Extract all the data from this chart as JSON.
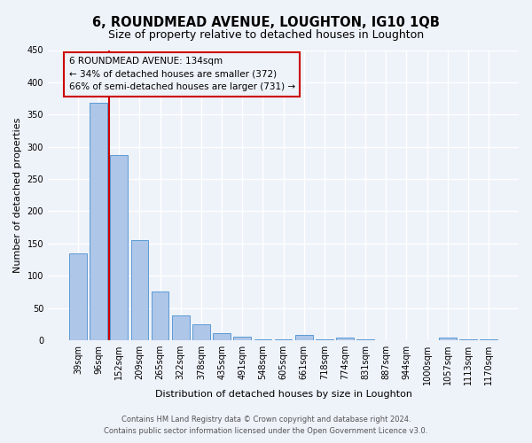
{
  "title": "6, ROUNDMEAD AVENUE, LOUGHTON, IG10 1QB",
  "subtitle": "Size of property relative to detached houses in Loughton",
  "xlabel": "Distribution of detached houses by size in Loughton",
  "ylabel": "Number of detached properties",
  "bar_labels": [
    "39sqm",
    "96sqm",
    "152sqm",
    "209sqm",
    "265sqm",
    "322sqm",
    "378sqm",
    "435sqm",
    "491sqm",
    "548sqm",
    "605sqm",
    "661sqm",
    "718sqm",
    "774sqm",
    "831sqm",
    "887sqm",
    "944sqm",
    "1000sqm",
    "1057sqm",
    "1113sqm",
    "1170sqm"
  ],
  "bar_values": [
    135,
    368,
    287,
    155,
    75,
    38,
    25,
    11,
    6,
    2,
    2,
    8,
    2,
    4,
    2,
    0,
    0,
    0,
    4,
    2,
    2
  ],
  "bar_color": "#aec6e8",
  "bar_edge_color": "#5b9bd5",
  "vline_color": "#cc0000",
  "ylim": [
    0,
    450
  ],
  "yticks": [
    0,
    50,
    100,
    150,
    200,
    250,
    300,
    350,
    400,
    450
  ],
  "annotation_title": "6 ROUNDMEAD AVENUE: 134sqm",
  "annotation_line1": "← 34% of detached houses are smaller (372)",
  "annotation_line2": "66% of semi-detached houses are larger (731) →",
  "annotation_box_color": "#cc0000",
  "footer_line1": "Contains HM Land Registry data © Crown copyright and database right 2024.",
  "footer_line2": "Contains public sector information licensed under the Open Government Licence v3.0.",
  "background_color": "#eef2f9",
  "grid_color": "#ffffff",
  "title_fontsize": 10.5,
  "subtitle_fontsize": 9,
  "axis_label_fontsize": 8,
  "tick_fontsize": 7,
  "annotation_fontsize": 7.5,
  "footer_fontsize": 6
}
